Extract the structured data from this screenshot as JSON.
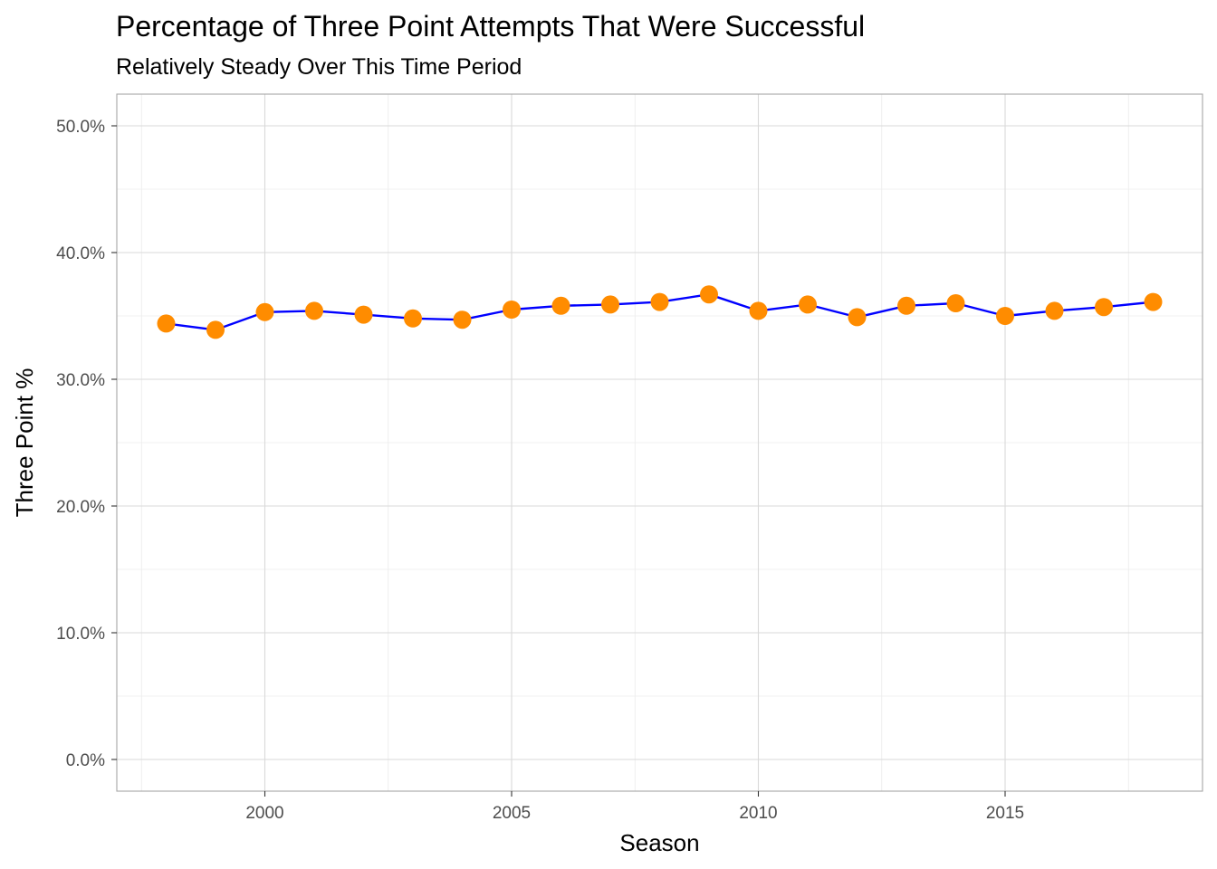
{
  "chart_data": {
    "type": "line",
    "title": "Percentage of Three Point Attempts That Were Successful",
    "subtitle": "Relatively Steady Over This Time Period",
    "xlabel": "Season",
    "ylabel": "Three Point %",
    "x": [
      1998,
      1999,
      2000,
      2001,
      2002,
      2003,
      2004,
      2005,
      2006,
      2007,
      2008,
      2009,
      2010,
      2011,
      2012,
      2013,
      2014,
      2015,
      2016,
      2017,
      2018
    ],
    "series": [
      {
        "values": [
          0.344,
          0.339,
          0.353,
          0.354,
          0.351,
          0.348,
          0.347,
          0.355,
          0.358,
          0.359,
          0.361,
          0.367,
          0.354,
          0.359,
          0.349,
          0.358,
          0.36,
          0.35,
          0.354,
          0.357,
          0.361
        ],
        "line_color": "#0000ff",
        "point_color": "#ff8c00"
      }
    ],
    "xlim": [
      1997.0,
      2019.0
    ],
    "ylim": [
      -0.025,
      0.525
    ],
    "x_ticks": [
      2000,
      2005,
      2010,
      2015
    ],
    "x_tick_labels": [
      "2000",
      "2005",
      "2010",
      "2015"
    ],
    "y_ticks": [
      0.0,
      0.1,
      0.2,
      0.3,
      0.4,
      0.5
    ],
    "y_tick_labels": [
      "0.0%",
      "10.0%",
      "20.0%",
      "30.0%",
      "40.0%",
      "50.0%"
    ],
    "grid": true,
    "legend": "none"
  }
}
